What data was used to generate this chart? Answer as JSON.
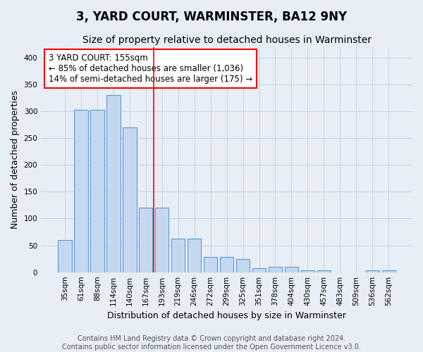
{
  "title": "3, YARD COURT, WARMINSTER, BA12 9NY",
  "subtitle": "Size of property relative to detached houses in Warminster",
  "xlabel": "Distribution of detached houses by size in Warminster",
  "ylabel": "Number of detached properties",
  "bar_labels": [
    "35sqm",
    "61sqm",
    "88sqm",
    "114sqm",
    "140sqm",
    "167sqm",
    "193sqm",
    "219sqm",
    "246sqm",
    "272sqm",
    "299sqm",
    "325sqm",
    "351sqm",
    "378sqm",
    "404sqm",
    "430sqm",
    "457sqm",
    "483sqm",
    "509sqm",
    "536sqm",
    "562sqm"
  ],
  "bar_heights": [
    60,
    302,
    302,
    330,
    270,
    120,
    120,
    62,
    62,
    29,
    28,
    25,
    7,
    10,
    10,
    4,
    4,
    0,
    0,
    4,
    4
  ],
  "bar_color": "#c5d8f0",
  "bar_edgecolor": "#5b9bd5",
  "grid_color": "#c8d4e0",
  "background_color": "#e8eef5",
  "red_line_x": 5.5,
  "annotation_text": "3 YARD COURT: 155sqm\n← 85% of detached houses are smaller (1,036)\n14% of semi-detached houses are larger (175) →",
  "ylim": [
    0,
    420
  ],
  "yticks": [
    0,
    50,
    100,
    150,
    200,
    250,
    300,
    350,
    400
  ],
  "footer": "Contains HM Land Registry data © Crown copyright and database right 2024.\nContains public sector information licensed under the Open Government Licence v3.0.",
  "title_fontsize": 12,
  "subtitle_fontsize": 10,
  "xlabel_fontsize": 9,
  "ylabel_fontsize": 9,
  "tick_fontsize": 7.5,
  "annotation_fontsize": 8.5,
  "footer_fontsize": 7
}
